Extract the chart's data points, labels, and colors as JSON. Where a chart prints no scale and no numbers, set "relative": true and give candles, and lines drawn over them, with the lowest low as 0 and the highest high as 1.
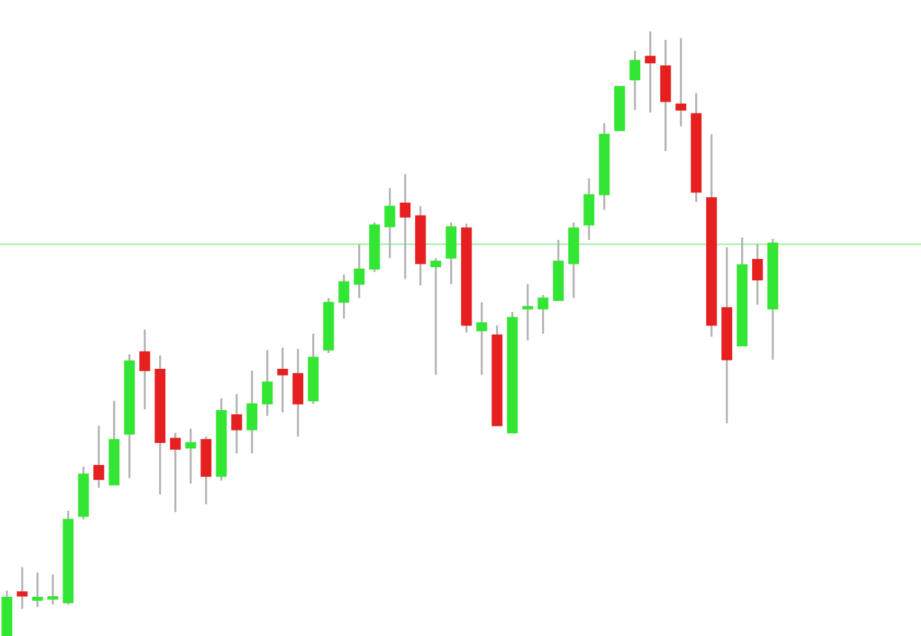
{
  "chart_data": {
    "type": "candlestick",
    "relative": true,
    "categories": [
      null,
      null,
      null,
      null,
      null,
      null,
      null,
      null,
      null,
      null,
      null,
      null,
      null,
      null,
      null,
      null,
      null,
      null,
      null,
      null,
      null,
      null,
      null,
      null,
      null,
      null,
      null,
      null,
      null,
      null,
      null,
      null,
      null,
      null,
      null,
      null,
      null,
      null,
      null,
      null,
      null,
      null,
      null,
      null,
      null,
      null,
      null,
      null,
      null,
      null,
      null
    ],
    "ohlc": [
      [
        0,
        0.075,
        0,
        0.064
      ],
      [
        0.073,
        0.114,
        0.045,
        0.066
      ],
      [
        0.059,
        0.105,
        0.048,
        0.064
      ],
      [
        0.061,
        0.102,
        0.052,
        0.064
      ],
      [
        0.055,
        0.207,
        0.052,
        0.193
      ],
      [
        0.198,
        0.28,
        0.193,
        0.268
      ],
      [
        0.282,
        0.348,
        0.245,
        0.259
      ],
      [
        0.25,
        0.389,
        0.25,
        0.325
      ],
      [
        0.334,
        0.466,
        0.261,
        0.455
      ],
      [
        0.47,
        0.507,
        0.375,
        0.439
      ],
      [
        0.441,
        0.464,
        0.234,
        0.32
      ],
      [
        0.327,
        0.336,
        0.205,
        0.309
      ],
      [
        0.311,
        0.343,
        0.252,
        0.32
      ],
      [
        0.325,
        0.33,
        0.218,
        0.264
      ],
      [
        0.264,
        0.393,
        0.257,
        0.373
      ],
      [
        0.366,
        0.4,
        0.302,
        0.341
      ],
      [
        0.341,
        0.439,
        0.302,
        0.384
      ],
      [
        0.384,
        0.473,
        0.364,
        0.42
      ],
      [
        0.441,
        0.477,
        0.37,
        0.432
      ],
      [
        0.434,
        0.475,
        0.33,
        0.384
      ],
      [
        0.389,
        0.5,
        0.384,
        0.461
      ],
      [
        0.473,
        0.559,
        0.468,
        0.552
      ],
      [
        0.552,
        0.598,
        0.525,
        0.586
      ],
      [
        0.582,
        0.648,
        0.559,
        0.607
      ],
      [
        0.607,
        0.684,
        0.602,
        0.68
      ],
      [
        0.677,
        0.741,
        0.625,
        0.711
      ],
      [
        0.716,
        0.764,
        0.591,
        0.693
      ],
      [
        0.695,
        0.711,
        0.58,
        0.616
      ],
      [
        0.611,
        0.625,
        0.432,
        0.62
      ],
      [
        0.625,
        0.684,
        0.582,
        0.677
      ],
      [
        0.675,
        0.682,
        0.502,
        0.514
      ],
      [
        0.505,
        0.552,
        0.432,
        0.518
      ],
      [
        0.498,
        0.514,
        0.348,
        0.348
      ],
      [
        0.336,
        0.536,
        0.336,
        0.527
      ],
      [
        0.541,
        0.582,
        0.489,
        0.543
      ],
      [
        0.541,
        0.564,
        0.5,
        0.559
      ],
      [
        0.555,
        0.655,
        0.555,
        0.62
      ],
      [
        0.616,
        0.684,
        0.559,
        0.675
      ],
      [
        0.68,
        0.757,
        0.655,
        0.73
      ],
      [
        0.73,
        0.848,
        0.705,
        0.83
      ],
      [
        0.836,
        0.909,
        0.836,
        0.909
      ],
      [
        0.92,
        0.968,
        0.87,
        0.952
      ],
      [
        0.959,
        1.0,
        0.866,
        0.948
      ],
      [
        0.943,
        0.986,
        0.802,
        0.884
      ],
      [
        0.88,
        0.989,
        0.843,
        0.87
      ],
      [
        0.864,
        0.898,
        0.718,
        0.734
      ],
      [
        0.725,
        0.83,
        0.495,
        0.514
      ],
      [
        0.543,
        0.643,
        0.352,
        0.457
      ],
      [
        0.48,
        0.659,
        0.48,
        0.614
      ],
      [
        0.623,
        0.648,
        0.548,
        0.589
      ],
      [
        0.541,
        0.657,
        0.457,
        0.65
      ]
    ],
    "colors": [
      "#33e633",
      "#e62020",
      "#33e633",
      "#33e633",
      "#33e633",
      "#33e633",
      "#e62020",
      "#33e633",
      "#33e633",
      "#e62020",
      "#e62020",
      "#e62020",
      "#33e633",
      "#e62020",
      "#33e633",
      "#e62020",
      "#33e633",
      "#33e633",
      "#e62020",
      "#e62020",
      "#33e633",
      "#33e633",
      "#33e633",
      "#33e633",
      "#33e633",
      "#33e633",
      "#e62020",
      "#e62020",
      "#33e633",
      "#33e633",
      "#e62020",
      "#33e633",
      "#e62020",
      "#33e633",
      "#33e633",
      "#33e633",
      "#33e633",
      "#33e633",
      "#33e633",
      "#33e633",
      "#33e633",
      "#33e633",
      "#e62020",
      "#e62020",
      "#e62020",
      "#e62020",
      "#e62020",
      "#e62020",
      "#33e633",
      "#e62020",
      "#33e633"
    ],
    "ref_lines": [
      {
        "axis": "y",
        "value": 0.648,
        "color": "#b9f2b9"
      }
    ]
  }
}
